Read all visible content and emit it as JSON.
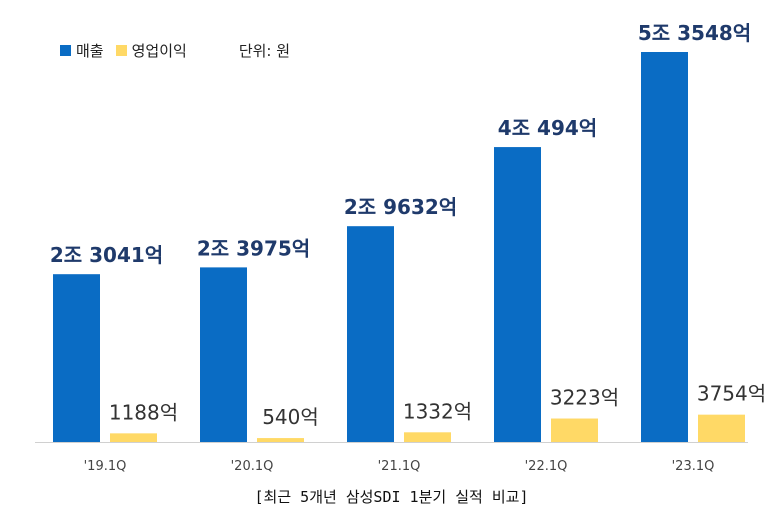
{
  "legend": {
    "revenue_label": "매출",
    "profit_label": "영업이익",
    "unit": "단위: 원"
  },
  "caption": "[최근 5개년 삼성SDI 1분기 실적 비교]",
  "colors": {
    "revenue": "#0A6CC4",
    "profit": "#FFD966",
    "revenue_label": "#1F3A6B",
    "profit_label": "#333333",
    "axis": "#D0D0D0"
  },
  "chart_data": {
    "type": "bar",
    "categories": [
      "'19.1Q",
      "'20.1Q",
      "'21.1Q",
      "'22.1Q",
      "'23.1Q"
    ],
    "series": [
      {
        "name": "매출",
        "values": [
          23041,
          23975,
          29632,
          40494,
          53548
        ],
        "labels": [
          "2조 3041억",
          "2조 3975억",
          "2조 9632억",
          "4조 494억",
          "5조 3548억"
        ]
      },
      {
        "name": "영업이익",
        "values": [
          1188,
          540,
          1332,
          3223,
          3754
        ],
        "labels": [
          "1188억",
          "540억",
          "1332억",
          "3223억",
          "3754억"
        ]
      }
    ],
    "unit": "억원",
    "ylim": [
      0,
      53548
    ],
    "grid": false,
    "legend_position": "top-left"
  }
}
